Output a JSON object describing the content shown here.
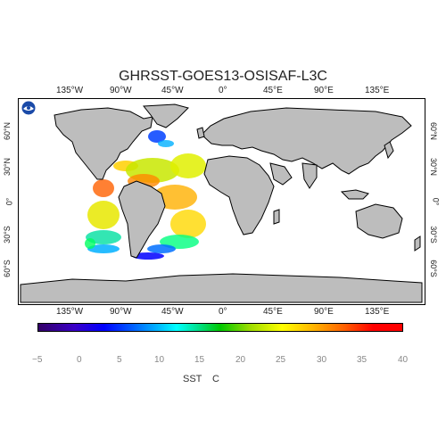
{
  "title": "GHRSST-GOES13-OSISAF-L3C",
  "lon_ticks": [
    "135°W",
    "90°W",
    "45°W",
    "0°",
    "45°E",
    "90°E",
    "135°E"
  ],
  "lat_ticks": [
    "60°N",
    "30°N",
    "0°",
    "30°S",
    "60°S"
  ],
  "colorbar_ticks": [
    "−5",
    "0",
    "5",
    "10",
    "15",
    "20",
    "25",
    "30",
    "35",
    "40"
  ],
  "units": {
    "variable": "SST",
    "unit": "C"
  },
  "colors": {
    "land": "#bdbdbd",
    "ocean": "#ffffff",
    "coast": "#000000",
    "sst_cold": "#0000ff",
    "sst_warm": "#ff0000"
  },
  "logo_icon": "noaa-logo-icon"
}
